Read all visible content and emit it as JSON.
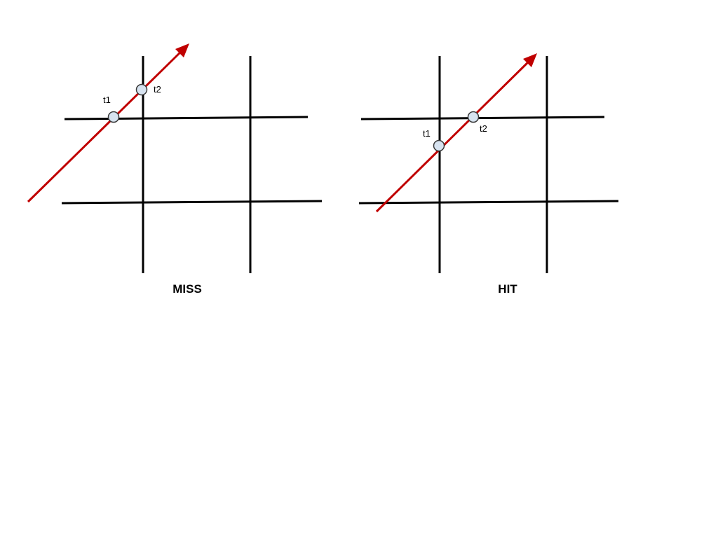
{
  "colors": {
    "grid": "#000000",
    "ray": "#c00000",
    "point_fill": "#d7e3f0",
    "point_stroke": "#3a3a3a"
  },
  "panels": [
    {
      "id": "miss",
      "caption": "MISS",
      "points": [
        {
          "id": "t1",
          "label": "t1"
        },
        {
          "id": "t2",
          "label": "t2"
        }
      ]
    },
    {
      "id": "hit",
      "caption": "HIT",
      "points": [
        {
          "id": "t1",
          "label": "t1"
        },
        {
          "id": "t2",
          "label": "t2"
        }
      ]
    }
  ]
}
